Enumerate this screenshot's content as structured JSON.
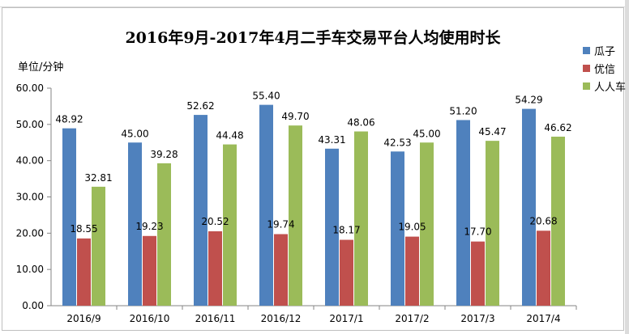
{
  "chart_data": {
    "type": "bar",
    "title": "2016年9月-2017年4月二手车交易平台人均使用时长",
    "ylabel": "单位/分钟",
    "xlabel": "",
    "ylim": [
      0,
      60
    ],
    "yticks": [
      "0.00",
      "10.00",
      "20.00",
      "30.00",
      "40.00",
      "50.00",
      "60.00"
    ],
    "categories": [
      "2016/9",
      "2016/10",
      "2016/11",
      "2016/12",
      "2017/1",
      "2017/2",
      "2017/3",
      "2017/4"
    ],
    "series": [
      {
        "name": "瓜子",
        "color": "#4f81bd",
        "values": [
          48.92,
          45.0,
          52.62,
          55.4,
          43.31,
          42.53,
          51.2,
          54.29
        ]
      },
      {
        "name": "优信",
        "color": "#c0504d",
        "values": [
          18.55,
          19.23,
          20.52,
          19.74,
          18.17,
          19.05,
          17.7,
          20.68
        ]
      },
      {
        "name": "人人车",
        "color": "#9bbb59",
        "values": [
          32.81,
          39.28,
          44.48,
          49.7,
          48.06,
          45.0,
          45.47,
          46.62
        ]
      }
    ],
    "legend_position": "right",
    "grid": false
  }
}
